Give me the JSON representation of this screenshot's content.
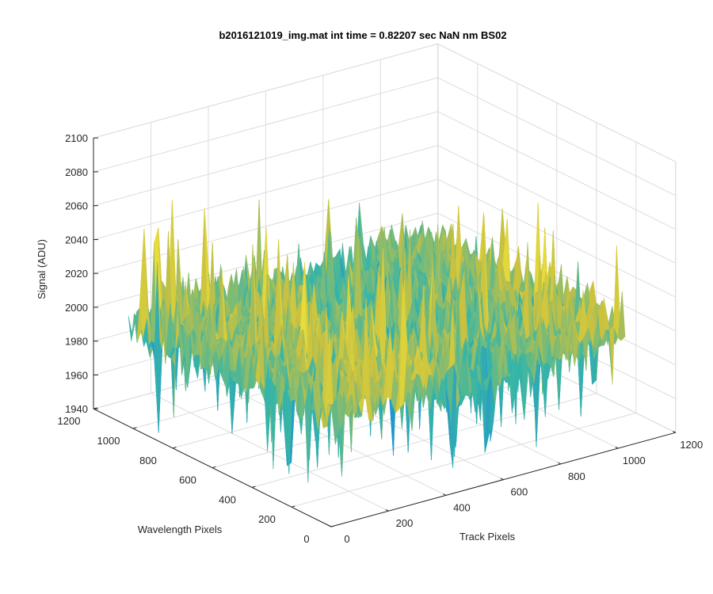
{
  "chart_data": {
    "type": "surface",
    "title": "b2016121019_img.mat int time = 0.82207 sec  NaN nm BS02",
    "xlabel": "Track Pixels",
    "ylabel": "Wavelength Pixels",
    "zlabel": "Signal (ADU)",
    "xlim": [
      0,
      1200
    ],
    "ylim": [
      0,
      1200
    ],
    "zlim": [
      1940,
      2100
    ],
    "xticks": [
      "0",
      "200",
      "400",
      "600",
      "800",
      "1000",
      "1200"
    ],
    "yticks": [
      "0",
      "200",
      "400",
      "600",
      "800",
      "1000",
      "1200"
    ],
    "zticks": [
      "1940",
      "1960",
      "1980",
      "2000",
      "2020",
      "2040",
      "2060",
      "2080",
      "2100"
    ],
    "grid": true,
    "view": "3-D isometric",
    "colormap": "parula",
    "data_extent": {
      "x": [
        0,
        1024
      ],
      "y": [
        0,
        1024
      ]
    },
    "signal": {
      "mean": 2000,
      "min": 1943,
      "max": 2085
    },
    "colors": {
      "low": "#1f8fd6",
      "mid": "#36b5a8",
      "high": "#c9c140",
      "peak": "#e8dd3a"
    }
  }
}
